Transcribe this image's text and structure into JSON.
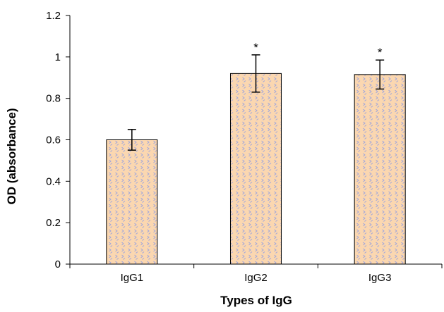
{
  "chart_data": {
    "type": "bar",
    "title": "",
    "xlabel": "Types of IgG",
    "ylabel": "OD (absorbance)",
    "categories": [
      "IgG1",
      "IgG2",
      "IgG3"
    ],
    "values": [
      0.6,
      0.92,
      0.915
    ],
    "error": [
      0.05,
      0.09,
      0.07
    ],
    "annotations": [
      "",
      "*",
      "*"
    ],
    "ylim": [
      0,
      1.2
    ],
    "yticks": [
      "0",
      "0.2",
      "0.4",
      "0.6",
      "0.8",
      "1",
      "1.2"
    ],
    "grid": false,
    "legend": "none",
    "bar_fill": "#fbd7b0",
    "bar_pattern_color": "#9fa6dc"
  }
}
